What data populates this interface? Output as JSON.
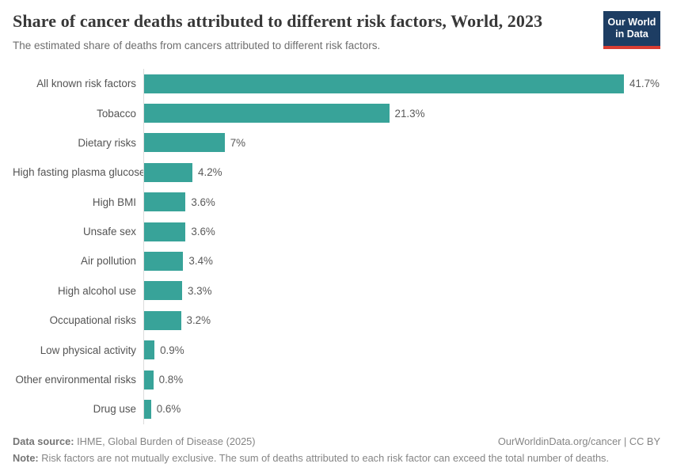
{
  "header": {
    "logo": {
      "line1": "Our World",
      "line2": "in Data",
      "bg_color": "#1d3d63",
      "accent_color": "#d93d32"
    }
  },
  "chart_data": {
    "type": "bar",
    "orientation": "horizontal",
    "title": "Share of cancer deaths attributed to different risk factors, World, 2023",
    "subtitle": "The estimated share of deaths from cancers attributed to different risk factors.",
    "categories": [
      "All known risk factors",
      "Tobacco",
      "Dietary risks",
      "High fasting plasma glucose",
      "High BMI",
      "Unsafe sex",
      "Air pollution",
      "High alcohol use",
      "Occupational risks",
      "Low physical activity",
      "Other environmental risks",
      "Drug use"
    ],
    "values": [
      41.7,
      21.3,
      7,
      4.2,
      3.6,
      3.6,
      3.4,
      3.3,
      3.2,
      0.9,
      0.8,
      0.6
    ],
    "value_labels": [
      "41.7%",
      "21.3%",
      "7%",
      "4.2%",
      "3.6%",
      "3.6%",
      "3.4%",
      "3.3%",
      "3.2%",
      "0.9%",
      "0.8%",
      "0.6%"
    ],
    "xlabel": "",
    "ylabel": "",
    "xlim": [
      0,
      45
    ],
    "grid": false,
    "legend": false,
    "bar_color": "#38a399",
    "unit": "%"
  },
  "footer": {
    "source_label": "Data source:",
    "source_text": " IHME, Global Burden of Disease (2025)",
    "credit": "OurWorldinData.org/cancer | CC BY",
    "note_label": "Note:",
    "note_text": " Risk factors are not mutually exclusive. The sum of deaths attributed to each risk factor can exceed the total number of deaths."
  }
}
